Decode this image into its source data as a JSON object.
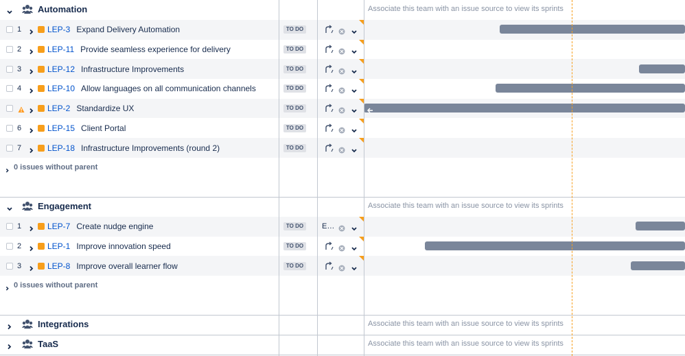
{
  "groups": [
    {
      "name": "Automation",
      "expanded": true,
      "sprint_note": "Associate this team with an issue source to view its sprints",
      "issues": [
        {
          "rank": 1,
          "key": "LEP-3",
          "summary": "Expand Delivery Automation",
          "status": "TO DO"
        },
        {
          "rank": 2,
          "key": "LEP-11",
          "summary": "Provide seamless experience for delivery",
          "status": "TO DO"
        },
        {
          "rank": 3,
          "key": "LEP-12",
          "summary": "Infrastructure Improvements",
          "status": "TO DO"
        },
        {
          "rank": 4,
          "key": "LEP-10",
          "summary": "Allow languages on all communication channels",
          "status": "TO DO"
        },
        {
          "warning": true,
          "key": "LEP-2",
          "summary": "Standardize UX",
          "status": "TO DO"
        },
        {
          "rank": 6,
          "key": "LEP-15",
          "summary": "Client Portal",
          "status": "TO DO"
        },
        {
          "rank": 7,
          "key": "LEP-18",
          "summary": "Infrastructure Improvements (round 2)",
          "status": "TO DO"
        }
      ],
      "no_parent": "0 issues without parent"
    },
    {
      "name": "Engagement",
      "expanded": true,
      "sprint_note": "Associate this team with an issue source to view its sprints",
      "issues": [
        {
          "rank": 1,
          "key": "LEP-7",
          "summary": "Create nudge engine",
          "status": "TO DO",
          "assignee": "E…"
        },
        {
          "rank": 2,
          "key": "LEP-1",
          "summary": "Improve innovation speed",
          "status": "TO DO"
        },
        {
          "rank": 3,
          "key": "LEP-8",
          "summary": "Improve overall learner flow",
          "status": "TO DO"
        }
      ],
      "no_parent": "0 issues without parent"
    },
    {
      "name": "Integrations",
      "expanded": false,
      "sprint_note": "Associate this team with an issue source to view its sprints"
    },
    {
      "name": "TaaS",
      "expanded": false,
      "sprint_note": "Associate this team with an issue source to view its sprints"
    }
  ]
}
